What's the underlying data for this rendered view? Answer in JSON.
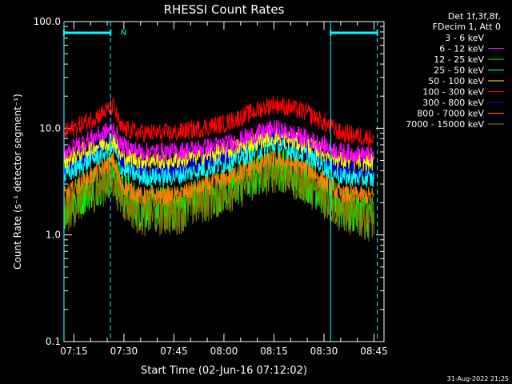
{
  "chart_data": {
    "type": "line",
    "title": "RHESSI Count Rates",
    "xlabel": "Start Time (02-Jun-16 07:12:02)",
    "ylabel": "Count Rate (s⁻¹ detector segment⁻¹)",
    "yscale": "log",
    "ylim": [
      0.1,
      100.0
    ],
    "y_ticks": [
      "0.1",
      "1.0",
      "10.0",
      "100.0"
    ],
    "xlim": [
      "07:12:02",
      "08:48:00"
    ],
    "x_ticks": [
      "07:15",
      "07:30",
      "07:45",
      "08:00",
      "08:15",
      "08:30",
      "08:45"
    ],
    "legend_header": [
      "Det 1f,3f,8f,",
      "FDecim 1, Att 0"
    ],
    "legend_placement": "right",
    "series": [
      {
        "name": "3 - 6 keV",
        "color": "#000000",
        "x": [
          "07:12",
          "07:20",
          "07:27",
          "07:29",
          "07:35",
          "07:45",
          "08:00",
          "08:15",
          "08:25",
          "08:35",
          "08:45"
        ],
        "y": [
          1.5,
          2.5,
          3.3,
          2.2,
          1.5,
          1.5,
          2.4,
          4.0,
          3.0,
          1.6,
          1.3
        ]
      },
      {
        "name": "6 - 12 keV",
        "color": "#ff00ff",
        "x": [
          "07:12",
          "07:20",
          "07:27",
          "07:29",
          "07:35",
          "07:45",
          "08:00",
          "08:15",
          "08:25",
          "08:35",
          "08:45"
        ],
        "y": [
          6.0,
          8.0,
          10.0,
          7.0,
          6.0,
          6.0,
          7.0,
          10.0,
          8.0,
          6.0,
          5.5
        ]
      },
      {
        "name": "12 - 25 keV",
        "color": "#00ff00",
        "x": [
          "07:12",
          "07:20",
          "07:27",
          "07:29",
          "07:35",
          "07:45",
          "08:00",
          "08:15",
          "08:25",
          "08:35",
          "08:45"
        ],
        "y": [
          1.8,
          2.8,
          3.8,
          2.6,
          1.8,
          1.8,
          2.6,
          4.5,
          3.3,
          1.8,
          1.5
        ]
      },
      {
        "name": "25 - 50 keV",
        "color": "#00ffff",
        "x": [
          "07:12",
          "07:20",
          "07:27",
          "07:29",
          "07:35",
          "07:45",
          "08:00",
          "08:15",
          "08:25",
          "08:35",
          "08:45"
        ],
        "y": [
          3.5,
          5.0,
          6.5,
          4.2,
          3.5,
          3.5,
          4.6,
          7.0,
          5.5,
          3.5,
          3.3
        ]
      },
      {
        "name": "50 - 100 keV",
        "color": "#ffff00",
        "x": [
          "07:12",
          "07:20",
          "07:27",
          "07:29",
          "07:35",
          "07:45",
          "08:00",
          "08:15",
          "08:25",
          "08:35",
          "08:45"
        ],
        "y": [
          5.0,
          6.5,
          8.0,
          5.5,
          5.0,
          5.0,
          6.0,
          8.5,
          7.0,
          5.0,
          4.8
        ]
      },
      {
        "name": "100 - 300 keV",
        "color": "#ff0000",
        "x": [
          "07:12",
          "07:20",
          "07:27",
          "07:29",
          "07:35",
          "07:45",
          "08:00",
          "08:15",
          "08:25",
          "08:35",
          "08:45"
        ],
        "y": [
          9.0,
          12.0,
          16.0,
          10.0,
          9.0,
          9.0,
          11.0,
          17.0,
          14.0,
          9.0,
          8.0
        ]
      },
      {
        "name": "300 - 800 keV",
        "color": "#0000ff",
        "x": [
          "07:12",
          "07:20",
          "07:27",
          "07:29",
          "07:35",
          "07:45",
          "08:00",
          "08:15",
          "08:25",
          "08:35",
          "08:45"
        ],
        "y": [
          4.0,
          6.0,
          8.0,
          5.0,
          4.0,
          4.0,
          5.5,
          8.5,
          6.5,
          4.0,
          3.8
        ]
      },
      {
        "name": "800 - 7000 keV",
        "color": "#ff8000",
        "x": [
          "07:12",
          "07:20",
          "07:27",
          "07:29",
          "07:35",
          "07:45",
          "08:00",
          "08:15",
          "08:25",
          "08:35",
          "08:45"
        ],
        "y": [
          2.3,
          3.5,
          5.0,
          3.0,
          2.3,
          2.3,
          3.3,
          5.2,
          4.2,
          2.4,
          2.3
        ]
      },
      {
        "name": "7000 - 15000 keV",
        "color": "#808000",
        "x": [
          "07:12",
          "07:20",
          "07:27",
          "07:29",
          "07:35",
          "07:45",
          "08:00",
          "08:15",
          "08:25",
          "08:35",
          "08:45"
        ],
        "y": [
          1.6,
          2.6,
          3.4,
          2.3,
          1.6,
          1.6,
          2.5,
          4.1,
          3.1,
          1.7,
          1.4
        ]
      }
    ],
    "annotations": {
      "top_markers": [
        {
          "from": "07:12",
          "to": "07:26",
          "label": ""
        },
        {
          "from": "07:28",
          "to": "07:28",
          "label": "N"
        },
        {
          "from": "08:32",
          "to": "08:46",
          "label": ""
        }
      ],
      "vertical_lines": [
        {
          "x": "07:12",
          "style": "solid"
        },
        {
          "x": "07:26",
          "style": "dashed"
        },
        {
          "x": "08:32",
          "style": "solid"
        },
        {
          "x": "08:46",
          "style": "dashed"
        }
      ],
      "marker_color": "#00ffff"
    },
    "timestamp": "31-Aug-2022 21:25"
  }
}
